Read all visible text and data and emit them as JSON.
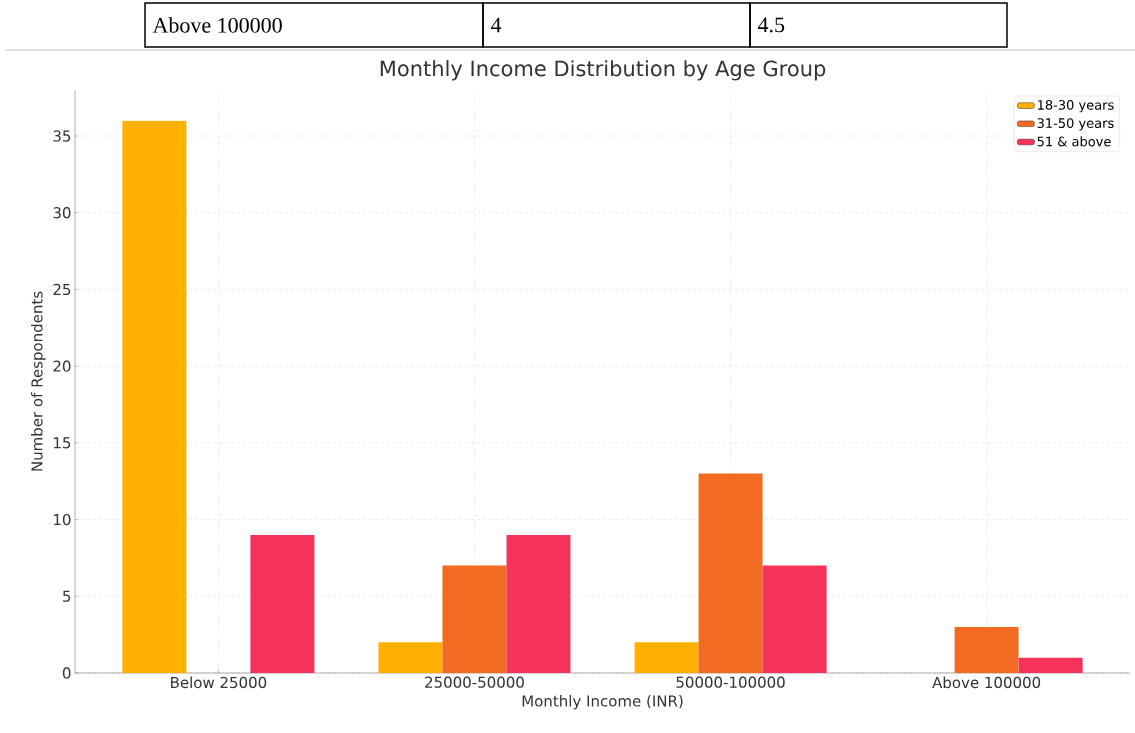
{
  "chart_data": {
    "type": "bar",
    "title": "Monthly Income Distribution by Age Group",
    "xlabel": "Monthly Income (INR)",
    "ylabel": "Number of Respondents",
    "annotations": [
      "Above 100000",
      "4",
      "4.5"
    ],
    "categories": [
      "Below 25000",
      "25000-50000",
      "50000-100000",
      "Above 100000"
    ],
    "series": [
      {
        "name": "18-30 years",
        "color": "#ffb000",
        "values": [
          36,
          2,
          2,
          0
        ]
      },
      {
        "name": "31-50 years",
        "color": "#f26b21",
        "values": [
          0,
          7,
          13,
          3
        ]
      },
      {
        "name": "51 & above",
        "color": "#f4325a",
        "values": [
          9,
          9,
          7,
          1
        ]
      }
    ],
    "ylim": [
      0,
      38
    ],
    "yticks": [
      0,
      5,
      10,
      15,
      20,
      25,
      30,
      35
    ],
    "grid": true,
    "legend": "top right"
  }
}
